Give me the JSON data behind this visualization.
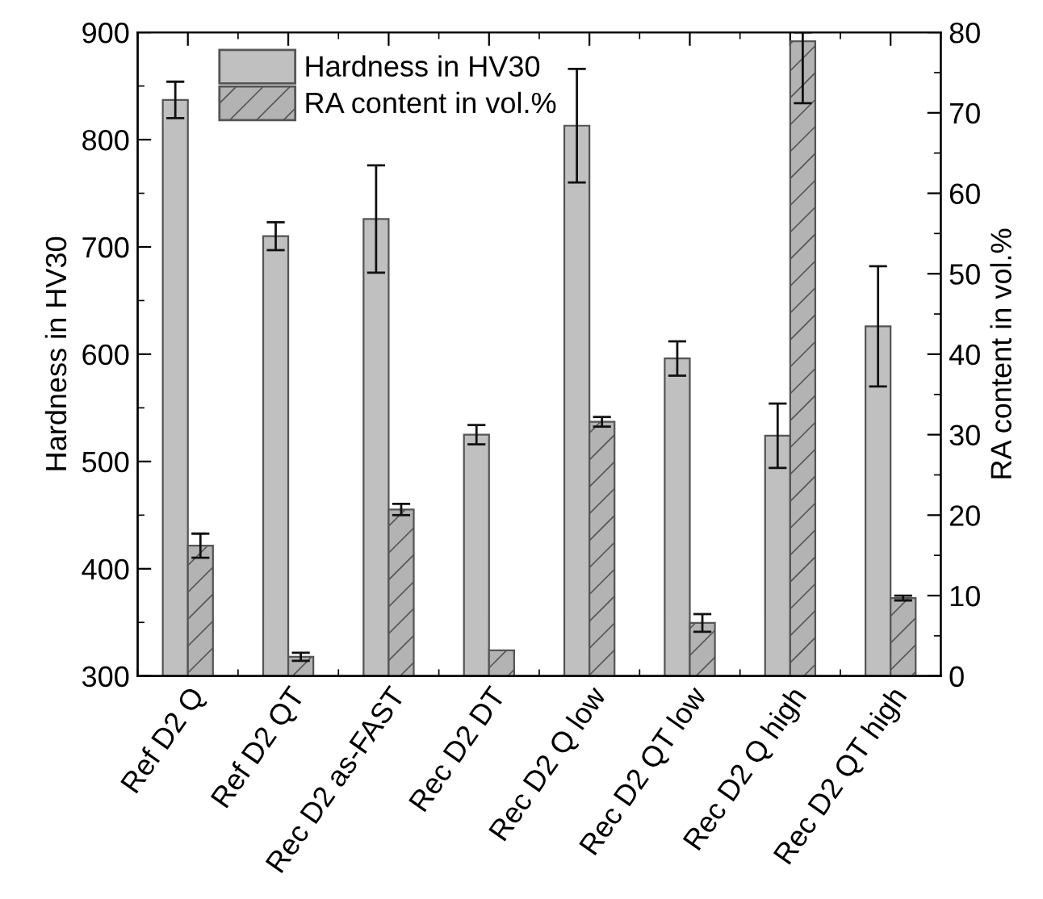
{
  "chart_data": {
    "type": "bar",
    "categories": [
      "Ref D2 Q",
      "Ref D2 QT",
      "Rec D2 as-FAST",
      "Rec D2 DT",
      "Rec D2 Q low",
      "Rec D2 QT low",
      "Rec D2 Q high",
      "Rec D2 QT high"
    ],
    "series": [
      {
        "name": "Hardness in HV30",
        "color": "#c0c0c0",
        "values": [
          837,
          710,
          726,
          525,
          813,
          596,
          524,
          626
        ],
        "errors": [
          17,
          13,
          50,
          9,
          53,
          16,
          30,
          56
        ]
      },
      {
        "name": "RA content in vol.%",
        "color": "#555555",
        "axis": "y2",
        "values": [
          16.2,
          2.4,
          20.7,
          3.2,
          31.6,
          6.6,
          78.9,
          9.7
        ],
        "errors": [
          1.5,
          0.5,
          0.7,
          null,
          0.6,
          1.1,
          [
            71.2,
            80
          ],
          0.3
        ]
      }
    ],
    "ylabel": "Hardness in HV30",
    "y2label": "RA content in vol.%",
    "ylim": [
      300,
      900
    ],
    "yticks": [
      300,
      400,
      500,
      600,
      700,
      800,
      900
    ],
    "y2lim": [
      0,
      80
    ],
    "y2ticks": [
      0,
      10,
      20,
      30,
      40,
      50,
      60,
      70,
      80
    ],
    "legend": "top left",
    "grid": false
  }
}
